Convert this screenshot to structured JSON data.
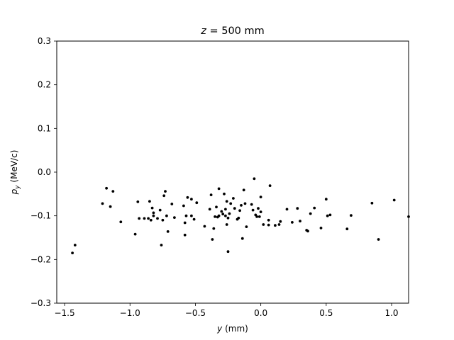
{
  "chart_data": {
    "type": "scatter",
    "title_var": "z",
    "title_value": "= 500 mm",
    "xlabel_var": "y",
    "xlabel_unit": "(mm)",
    "ylabel_var": "p",
    "ylabel_sub": "y",
    "ylabel_unit": "(MeV/c)",
    "xlim": [
      -1.56,
      1.13
    ],
    "ylim": [
      -0.3,
      0.3
    ],
    "xticks": [
      -1.5,
      -1.0,
      -0.5,
      0.0,
      0.5,
      1.0
    ],
    "xtick_labels": [
      "−1.5",
      "−1.0",
      "−0.5",
      "0.0",
      "0.5",
      "1.0"
    ],
    "yticks": [
      -0.3,
      -0.2,
      -0.1,
      0.0,
      0.1,
      0.2,
      0.3
    ],
    "ytick_labels": [
      "−0.3",
      "−0.2",
      "−0.1",
      "0.0",
      "0.1",
      "0.2",
      "0.3"
    ],
    "grid": false,
    "legend": "none",
    "marker_color": "#000000",
    "points": [
      [
        -1.44,
        -0.185
      ],
      [
        -1.42,
        -0.167
      ],
      [
        -1.21,
        -0.072
      ],
      [
        -1.18,
        -0.037
      ],
      [
        -1.15,
        -0.079
      ],
      [
        -1.13,
        -0.044
      ],
      [
        -1.07,
        -0.114
      ],
      [
        -0.96,
        -0.142
      ],
      [
        -0.94,
        -0.068
      ],
      [
        -0.93,
        -0.106
      ],
      [
        -0.89,
        -0.106
      ],
      [
        -0.86,
        -0.106
      ],
      [
        -0.85,
        -0.067
      ],
      [
        -0.84,
        -0.11
      ],
      [
        -0.83,
        -0.082
      ],
      [
        -0.82,
        -0.093
      ],
      [
        -0.82,
        -0.1
      ],
      [
        -0.79,
        -0.106
      ],
      [
        -0.77,
        -0.087
      ],
      [
        -0.76,
        -0.167
      ],
      [
        -0.75,
        -0.11
      ],
      [
        -0.74,
        -0.054
      ],
      [
        -0.73,
        -0.044
      ],
      [
        -0.72,
        -0.1
      ],
      [
        -0.71,
        -0.136
      ],
      [
        -0.68,
        -0.073
      ],
      [
        -0.66,
        -0.104
      ],
      [
        -0.59,
        -0.077
      ],
      [
        -0.58,
        -0.116
      ],
      [
        -0.58,
        -0.144
      ],
      [
        -0.57,
        -0.1
      ],
      [
        -0.56,
        -0.058
      ],
      [
        -0.53,
        -0.062
      ],
      [
        -0.53,
        -0.1
      ],
      [
        -0.51,
        -0.108
      ],
      [
        -0.49,
        -0.07
      ],
      [
        -0.43,
        -0.124
      ],
      [
        -0.39,
        -0.085
      ],
      [
        -0.38,
        -0.052
      ],
      [
        -0.37,
        -0.154
      ],
      [
        -0.36,
        -0.129
      ],
      [
        -0.35,
        -0.102
      ],
      [
        -0.34,
        -0.08
      ],
      [
        -0.33,
        -0.103
      ],
      [
        -0.32,
        -0.038
      ],
      [
        -0.32,
        -0.1
      ],
      [
        -0.3,
        -0.09
      ],
      [
        -0.29,
        -0.096
      ],
      [
        -0.28,
        -0.05
      ],
      [
        -0.27,
        -0.1
      ],
      [
        -0.27,
        -0.085
      ],
      [
        -0.26,
        -0.067
      ],
      [
        -0.26,
        -0.12
      ],
      [
        -0.25,
        -0.182
      ],
      [
        -0.25,
        -0.105
      ],
      [
        -0.24,
        -0.095
      ],
      [
        -0.23,
        -0.072
      ],
      [
        -0.21,
        -0.06
      ],
      [
        -0.2,
        -0.083
      ],
      [
        -0.18,
        -0.108
      ],
      [
        -0.17,
        -0.105
      ],
      [
        -0.16,
        -0.088
      ],
      [
        -0.15,
        -0.076
      ],
      [
        -0.14,
        -0.152
      ],
      [
        -0.13,
        -0.041
      ],
      [
        -0.12,
        -0.072
      ],
      [
        -0.11,
        -0.125
      ],
      [
        -0.07,
        -0.074
      ],
      [
        -0.06,
        -0.087
      ],
      [
        -0.05,
        -0.015
      ],
      [
        -0.04,
        -0.098
      ],
      [
        -0.03,
        -0.102
      ],
      [
        -0.02,
        -0.083
      ],
      [
        -0.01,
        -0.102
      ],
      [
        0.0,
        -0.091
      ],
      [
        0.0,
        -0.057
      ],
      [
        0.02,
        -0.12
      ],
      [
        0.06,
        -0.11
      ],
      [
        0.06,
        -0.121
      ],
      [
        0.07,
        -0.031
      ],
      [
        0.11,
        -0.122
      ],
      [
        0.14,
        -0.12
      ],
      [
        0.15,
        -0.113
      ],
      [
        0.2,
        -0.085
      ],
      [
        0.24,
        -0.115
      ],
      [
        0.28,
        -0.083
      ],
      [
        0.3,
        -0.112
      ],
      [
        0.35,
        -0.133
      ],
      [
        0.36,
        -0.135
      ],
      [
        0.38,
        -0.095
      ],
      [
        0.41,
        -0.082
      ],
      [
        0.46,
        -0.128
      ],
      [
        0.5,
        -0.062
      ],
      [
        0.51,
        -0.1
      ],
      [
        0.53,
        -0.098
      ],
      [
        0.66,
        -0.13
      ],
      [
        0.69,
        -0.099
      ],
      [
        0.85,
        -0.071
      ],
      [
        0.9,
        -0.154
      ],
      [
        1.02,
        -0.064
      ],
      [
        1.13,
        -0.102
      ]
    ]
  }
}
